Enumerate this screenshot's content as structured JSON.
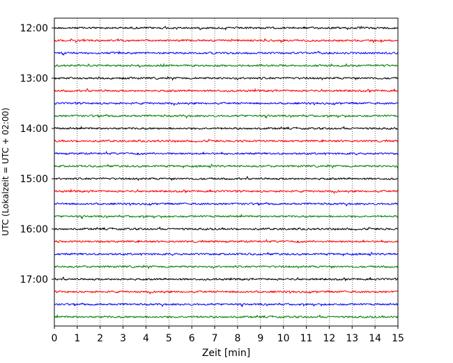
{
  "chart_data": {
    "type": "line",
    "title": "",
    "xlabel": "Zeit  [min]",
    "ylabel": "UTC (Lokalzeit = UTC + 02:00)",
    "xlim": [
      0,
      15
    ],
    "x_ticks": [
      0,
      1,
      2,
      3,
      4,
      5,
      6,
      7,
      8,
      9,
      10,
      11,
      12,
      13,
      14,
      15
    ],
    "y_tick_labels": [
      "12:00",
      "13:00",
      "14:00",
      "15:00",
      "16:00",
      "17:00"
    ],
    "rows_per_hour": 4,
    "trace_start_times": [
      "12:00",
      "12:15",
      "12:30",
      "12:45",
      "13:00",
      "13:15",
      "13:30",
      "13:45",
      "14:00",
      "14:15",
      "14:30",
      "14:45",
      "15:00",
      "15:15",
      "15:30",
      "15:45",
      "16:00",
      "16:15",
      "16:30",
      "16:45",
      "17:00",
      "17:15",
      "17:30",
      "17:45"
    ],
    "trace_colors": [
      "#000000",
      "#ff0000",
      "#0000ff",
      "#008000"
    ],
    "grid": "vertical dotted at each minute",
    "legend": "none"
  }
}
